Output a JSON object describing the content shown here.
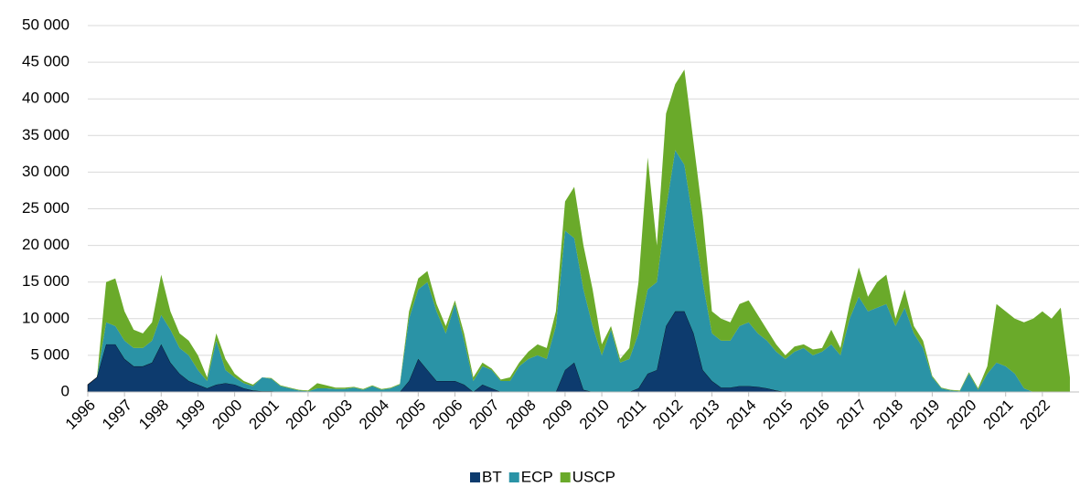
{
  "chart_data": {
    "type": "stacked_area",
    "x": [
      1996,
      1996.25,
      1996.5,
      1996.75,
      1997,
      1997.25,
      1997.5,
      1997.75,
      1998,
      1998.25,
      1998.5,
      1998.75,
      1999,
      1999.25,
      1999.5,
      1999.75,
      2000,
      2000.25,
      2000.5,
      2000.75,
      2001,
      2001.25,
      2001.5,
      2001.75,
      2002,
      2002.25,
      2002.5,
      2002.75,
      2003,
      2003.25,
      2003.5,
      2003.75,
      2004,
      2004.25,
      2004.5,
      2004.75,
      2005,
      2005.25,
      2005.5,
      2005.75,
      2006,
      2006.25,
      2006.5,
      2006.75,
      2007,
      2007.25,
      2007.5,
      2007.75,
      2008,
      2008.25,
      2008.5,
      2008.75,
      2009,
      2009.25,
      2009.5,
      2009.75,
      2010,
      2010.25,
      2010.5,
      2010.75,
      2011,
      2011.25,
      2011.5,
      2011.75,
      2012,
      2012.25,
      2012.5,
      2012.75,
      2013,
      2013.25,
      2013.5,
      2013.75,
      2014,
      2014.25,
      2014.5,
      2014.75,
      2015,
      2015.25,
      2015.5,
      2015.75,
      2016,
      2016.25,
      2016.5,
      2016.75,
      2017,
      2017.25,
      2017.5,
      2017.75,
      2018,
      2018.25,
      2018.5,
      2018.75,
      2019,
      2019.25,
      2019.5,
      2019.75,
      2020,
      2020.25,
      2020.5,
      2020.75,
      2021,
      2021.25,
      2021.5,
      2021.75,
      2022,
      2022.25,
      2022.5,
      2022.75
    ],
    "series": [
      {
        "name": "BT",
        "color": "#0d3b6e",
        "values": [
          1000,
          2000,
          6500,
          6500,
          4500,
          3500,
          3500,
          4000,
          6500,
          4000,
          2500,
          1500,
          1000,
          500,
          1000,
          1200,
          1000,
          500,
          200,
          100,
          100,
          0,
          0,
          0,
          0,
          0,
          0,
          0,
          0,
          0,
          0,
          0,
          0,
          0,
          0,
          1500,
          4500,
          3000,
          1500,
          1500,
          1500,
          1000,
          0,
          1000,
          500,
          0,
          0,
          0,
          0,
          0,
          0,
          0,
          3000,
          4000,
          300,
          0,
          0,
          0,
          0,
          0,
          500,
          2500,
          3000,
          9000,
          11000,
          11000,
          8000,
          3000,
          1500,
          600,
          600,
          800,
          800,
          700,
          500,
          200,
          0,
          0,
          0,
          0,
          0,
          0,
          0,
          0,
          0,
          0,
          0,
          0,
          0,
          0,
          0,
          0,
          0,
          0,
          0,
          0,
          0,
          0,
          0,
          0,
          0,
          0,
          0,
          0,
          0,
          0,
          0,
          0
        ]
      },
      {
        "name": "ECP",
        "color": "#2a93a6",
        "values": [
          0,
          0,
          3000,
          2500,
          2500,
          2500,
          2500,
          3000,
          4000,
          4500,
          3500,
          3500,
          2000,
          1000,
          6000,
          1800,
          1000,
          700,
          600,
          1900,
          1700,
          800,
          500,
          200,
          100,
          500,
          500,
          400,
          400,
          600,
          300,
          800,
          300,
          500,
          1000,
          8500,
          9500,
          12000,
          9500,
          6500,
          10500,
          6000,
          1500,
          2500,
          2500,
          1500,
          1500,
          3500,
          4500,
          5000,
          4500,
          9000,
          19000,
          17000,
          13700,
          9000,
          5000,
          8500,
          4000,
          4500,
          7500,
          11500,
          12000,
          16000,
          22000,
          20000,
          15000,
          12000,
          6500,
          6400,
          6400,
          8200,
          8700,
          7300,
          6500,
          5300,
          4500,
          5500,
          6000,
          5000,
          5500,
          6500,
          5000,
          10000,
          13000,
          11000,
          11500,
          12000,
          9000,
          11500,
          8000,
          6000,
          2000,
          500,
          200,
          100,
          2500,
          300,
          2500,
          4000,
          3500,
          2500,
          500,
          0,
          0,
          0,
          0,
          0
        ]
      },
      {
        "name": "USCP",
        "color": "#6aaa2a",
        "values": [
          0,
          0,
          5500,
          6500,
          4000,
          2500,
          2000,
          2500,
          5500,
          2500,
          2000,
          2000,
          2000,
          500,
          1000,
          1500,
          500,
          300,
          200,
          0,
          100,
          100,
          100,
          100,
          100,
          700,
          400,
          200,
          200,
          100,
          100,
          100,
          100,
          100,
          100,
          1000,
          1500,
          1500,
          1000,
          1000,
          500,
          1000,
          500,
          500,
          200,
          200,
          500,
          500,
          1000,
          1500,
          1500,
          2000,
          4000,
          7000,
          6000,
          5000,
          1500,
          500,
          500,
          1500,
          7000,
          18000,
          5000,
          13000,
          9000,
          13000,
          11000,
          9000,
          3000,
          3000,
          2500,
          3000,
          3000,
          2500,
          1500,
          1000,
          500,
          700,
          500,
          800,
          500,
          2000,
          1000,
          2000,
          4000,
          2000,
          3500,
          4000,
          1000,
          2500,
          1000,
          1000,
          200,
          100,
          100,
          100,
          200,
          200,
          1000,
          8000,
          7500,
          7500,
          9000,
          10000,
          11000,
          10000,
          11500,
          2000
        ]
      }
    ],
    "xlim": [
      1996,
      2023
    ],
    "xticks": [
      1996,
      1997,
      1998,
      1999,
      2000,
      2001,
      2002,
      2003,
      2004,
      2005,
      2006,
      2007,
      2008,
      2009,
      2010,
      2011,
      2012,
      2013,
      2014,
      2015,
      2016,
      2017,
      2018,
      2019,
      2020,
      2021,
      2022
    ],
    "ylim": [
      0,
      50000
    ],
    "yticks": [
      0,
      {
        "value": 5000,
        "label": "5 000"
      },
      {
        "value": 10000,
        "label": "10 000"
      },
      {
        "value": 15000,
        "label": "15 000"
      },
      {
        "value": 20000,
        "label": "20 000"
      },
      {
        "value": 25000,
        "label": "25 000"
      },
      {
        "value": 30000,
        "label": "30 000"
      },
      {
        "value": 35000,
        "label": "35 000"
      },
      {
        "value": 40000,
        "label": "40 000"
      },
      {
        "value": 45000,
        "label": "45 000"
      },
      {
        "value": 50000,
        "label": "50 000"
      }
    ],
    "grid": true,
    "legend": "bottom"
  }
}
